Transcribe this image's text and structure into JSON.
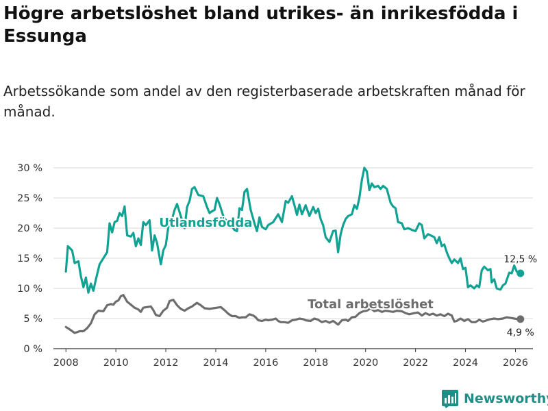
{
  "title": "Högre arbetslöshet bland utrikes- än inrikesfödda i Essunga",
  "subtitle": "Arbetssökande som andel av den registerbaserade arbetskraften månad för månad.",
  "brand": {
    "name": "Newsworthy",
    "icon": "newsworthy-logo-icon"
  },
  "colors": {
    "foreign_born": "#12a293",
    "total": "#6d6d6d",
    "grid": "#d9d9d9",
    "axis": "#333333"
  },
  "chart_data": {
    "type": "line",
    "title": "Högre arbetslöshet bland utrikes- än inrikesfödda i Essunga",
    "subtitle": "Arbetssökande som andel av den registerbaserade arbetskraften månad för månad.",
    "xlabel": "",
    "ylabel": "",
    "xlim": [
      2007.5,
      2026.7
    ],
    "ylim": [
      0,
      30
    ],
    "x_ticks": [
      2008,
      2010,
      2012,
      2014,
      2016,
      2018,
      2020,
      2022,
      2024,
      2026
    ],
    "y_ticks": [
      0,
      5,
      10,
      15,
      20,
      25,
      30
    ],
    "y_tick_labels": [
      "0 %",
      "5 %",
      "10 %",
      "15 %",
      "20 %",
      "25 %",
      "30 %"
    ],
    "grid": "horizontal",
    "series": [
      {
        "name": "Utlandsfödda",
        "color": "#12a293",
        "end_label": "12,5 %",
        "points": [
          [
            2008.0,
            12.8
          ],
          [
            2008.08,
            17.0
          ],
          [
            2008.25,
            16.3
          ],
          [
            2008.35,
            14.2
          ],
          [
            2008.5,
            14.5
          ],
          [
            2008.6,
            12.0
          ],
          [
            2008.7,
            10.2
          ],
          [
            2008.8,
            11.8
          ],
          [
            2008.9,
            9.3
          ],
          [
            2009.0,
            10.8
          ],
          [
            2009.1,
            9.6
          ],
          [
            2009.2,
            11.5
          ],
          [
            2009.35,
            14.0
          ],
          [
            2009.5,
            15.0
          ],
          [
            2009.65,
            16.0
          ],
          [
            2009.75,
            20.8
          ],
          [
            2009.85,
            19.3
          ],
          [
            2009.95,
            21.0
          ],
          [
            2010.05,
            21.2
          ],
          [
            2010.15,
            22.5
          ],
          [
            2010.25,
            22.0
          ],
          [
            2010.35,
            23.6
          ],
          [
            2010.45,
            18.8
          ],
          [
            2010.6,
            18.6
          ],
          [
            2010.7,
            19.2
          ],
          [
            2010.8,
            17.0
          ],
          [
            2010.9,
            18.3
          ],
          [
            2011.0,
            17.2
          ],
          [
            2011.1,
            21.0
          ],
          [
            2011.2,
            20.5
          ],
          [
            2011.35,
            21.3
          ],
          [
            2011.45,
            16.3
          ],
          [
            2011.55,
            18.8
          ],
          [
            2011.65,
            17.5
          ],
          [
            2011.8,
            14.0
          ],
          [
            2011.9,
            16.3
          ],
          [
            2012.0,
            17.2
          ],
          [
            2012.1,
            20.2
          ],
          [
            2012.25,
            21.5
          ],
          [
            2012.35,
            23.0
          ],
          [
            2012.45,
            24.0
          ],
          [
            2012.6,
            22.0
          ],
          [
            2012.75,
            20.0
          ],
          [
            2012.85,
            23.5
          ],
          [
            2012.95,
            24.5
          ],
          [
            2013.05,
            26.5
          ],
          [
            2013.15,
            26.8
          ],
          [
            2013.3,
            25.5
          ],
          [
            2013.5,
            25.3
          ],
          [
            2013.65,
            23.5
          ],
          [
            2013.75,
            22.5
          ],
          [
            2013.85,
            22.8
          ],
          [
            2013.95,
            23.0
          ],
          [
            2014.05,
            25.0
          ],
          [
            2014.15,
            24.0
          ],
          [
            2014.3,
            22.0
          ],
          [
            2014.45,
            21.0
          ],
          [
            2014.6,
            20.5
          ],
          [
            2014.75,
            19.7
          ],
          [
            2014.85,
            19.5
          ],
          [
            2014.95,
            23.3
          ],
          [
            2015.05,
            23.0
          ],
          [
            2015.15,
            26.0
          ],
          [
            2015.25,
            26.5
          ],
          [
            2015.4,
            23.0
          ],
          [
            2015.55,
            20.8
          ],
          [
            2015.65,
            19.5
          ],
          [
            2015.75,
            21.8
          ],
          [
            2015.85,
            20.2
          ],
          [
            2016.0,
            19.8
          ],
          [
            2016.1,
            20.5
          ],
          [
            2016.3,
            21.0
          ],
          [
            2016.5,
            22.3
          ],
          [
            2016.65,
            21.0
          ],
          [
            2016.8,
            24.5
          ],
          [
            2016.9,
            24.2
          ],
          [
            2017.05,
            25.3
          ],
          [
            2017.15,
            23.8
          ],
          [
            2017.25,
            22.2
          ],
          [
            2017.35,
            23.9
          ],
          [
            2017.45,
            22.3
          ],
          [
            2017.6,
            23.8
          ],
          [
            2017.75,
            22.0
          ],
          [
            2017.9,
            23.5
          ],
          [
            2018.0,
            22.5
          ],
          [
            2018.1,
            23.2
          ],
          [
            2018.2,
            21.5
          ],
          [
            2018.3,
            20.5
          ],
          [
            2018.4,
            18.5
          ],
          [
            2018.55,
            17.7
          ],
          [
            2018.7,
            19.5
          ],
          [
            2018.8,
            19.6
          ],
          [
            2018.9,
            16.0
          ],
          [
            2019.0,
            19.0
          ],
          [
            2019.1,
            20.5
          ],
          [
            2019.2,
            21.5
          ],
          [
            2019.3,
            22.0
          ],
          [
            2019.45,
            22.3
          ],
          [
            2019.55,
            23.8
          ],
          [
            2019.65,
            23.2
          ],
          [
            2019.75,
            25.0
          ],
          [
            2019.85,
            28.0
          ],
          [
            2019.95,
            30.0
          ],
          [
            2020.05,
            29.4
          ],
          [
            2020.15,
            26.3
          ],
          [
            2020.25,
            27.4
          ],
          [
            2020.35,
            26.8
          ],
          [
            2020.5,
            27.0
          ],
          [
            2020.6,
            26.5
          ],
          [
            2020.7,
            27.0
          ],
          [
            2020.85,
            26.5
          ],
          [
            2021.0,
            24.2
          ],
          [
            2021.1,
            23.6
          ],
          [
            2021.2,
            23.3
          ],
          [
            2021.3,
            21.0
          ],
          [
            2021.45,
            20.8
          ],
          [
            2021.55,
            19.8
          ],
          [
            2021.7,
            20.0
          ],
          [
            2021.85,
            19.7
          ],
          [
            2022.0,
            19.5
          ],
          [
            2022.15,
            20.8
          ],
          [
            2022.25,
            20.5
          ],
          [
            2022.35,
            18.3
          ],
          [
            2022.5,
            19.0
          ],
          [
            2022.6,
            18.8
          ],
          [
            2022.75,
            18.5
          ],
          [
            2022.85,
            17.5
          ],
          [
            2022.95,
            18.5
          ],
          [
            2023.05,
            17.0
          ],
          [
            2023.15,
            17.3
          ],
          [
            2023.25,
            16.0
          ],
          [
            2023.35,
            15.0
          ],
          [
            2023.45,
            14.2
          ],
          [
            2023.55,
            14.8
          ],
          [
            2023.7,
            14.2
          ],
          [
            2023.8,
            15.0
          ],
          [
            2023.9,
            13.2
          ],
          [
            2024.0,
            13.4
          ],
          [
            2024.1,
            10.2
          ],
          [
            2024.2,
            10.5
          ],
          [
            2024.35,
            10.0
          ],
          [
            2024.45,
            10.5
          ],
          [
            2024.55,
            10.2
          ],
          [
            2024.65,
            13.0
          ],
          [
            2024.75,
            13.6
          ],
          [
            2024.9,
            13.0
          ],
          [
            2025.0,
            13.2
          ],
          [
            2025.05,
            11.0
          ],
          [
            2025.15,
            11.5
          ],
          [
            2025.25,
            10.0
          ],
          [
            2025.4,
            9.8
          ],
          [
            2025.5,
            10.5
          ],
          [
            2025.6,
            10.8
          ],
          [
            2025.75,
            12.6
          ],
          [
            2025.85,
            12.5
          ],
          [
            2025.95,
            13.8
          ],
          [
            2026.05,
            12.8
          ],
          [
            2026.2,
            12.5
          ]
        ]
      },
      {
        "name": "Total arbetslöshet",
        "color": "#6d6d6d",
        "end_label": "4,9 %",
        "points": [
          [
            2008.0,
            3.6
          ],
          [
            2008.15,
            3.2
          ],
          [
            2008.35,
            2.6
          ],
          [
            2008.55,
            2.9
          ],
          [
            2008.7,
            2.9
          ],
          [
            2008.85,
            3.4
          ],
          [
            2009.0,
            4.2
          ],
          [
            2009.15,
            5.7
          ],
          [
            2009.3,
            6.3
          ],
          [
            2009.5,
            6.2
          ],
          [
            2009.65,
            7.2
          ],
          [
            2009.8,
            7.4
          ],
          [
            2009.9,
            7.3
          ],
          [
            2010.0,
            7.8
          ],
          [
            2010.1,
            8.0
          ],
          [
            2010.2,
            8.7
          ],
          [
            2010.3,
            8.9
          ],
          [
            2010.45,
            7.8
          ],
          [
            2010.6,
            7.3
          ],
          [
            2010.75,
            6.8
          ],
          [
            2010.9,
            6.5
          ],
          [
            2011.0,
            6.1
          ],
          [
            2011.1,
            6.8
          ],
          [
            2011.25,
            6.9
          ],
          [
            2011.4,
            7.0
          ],
          [
            2011.5,
            6.4
          ],
          [
            2011.6,
            5.6
          ],
          [
            2011.75,
            5.4
          ],
          [
            2011.9,
            6.3
          ],
          [
            2012.05,
            6.8
          ],
          [
            2012.15,
            7.9
          ],
          [
            2012.3,
            8.1
          ],
          [
            2012.45,
            7.2
          ],
          [
            2012.6,
            6.6
          ],
          [
            2012.75,
            6.3
          ],
          [
            2012.9,
            6.7
          ],
          [
            2013.05,
            7.0
          ],
          [
            2013.25,
            7.6
          ],
          [
            2013.4,
            7.2
          ],
          [
            2013.55,
            6.7
          ],
          [
            2013.75,
            6.6
          ],
          [
            2013.9,
            6.7
          ],
          [
            2014.05,
            6.8
          ],
          [
            2014.2,
            6.9
          ],
          [
            2014.35,
            6.4
          ],
          [
            2014.5,
            5.8
          ],
          [
            2014.65,
            5.4
          ],
          [
            2014.8,
            5.4
          ],
          [
            2014.95,
            5.1
          ],
          [
            2015.05,
            5.2
          ],
          [
            2015.2,
            5.2
          ],
          [
            2015.35,
            5.7
          ],
          [
            2015.5,
            5.5
          ],
          [
            2015.6,
            5.2
          ],
          [
            2015.7,
            4.7
          ],
          [
            2015.85,
            4.6
          ],
          [
            2016.0,
            4.8
          ],
          [
            2016.1,
            4.7
          ],
          [
            2016.25,
            4.8
          ],
          [
            2016.4,
            5.0
          ],
          [
            2016.5,
            4.6
          ],
          [
            2016.6,
            4.4
          ],
          [
            2016.75,
            4.4
          ],
          [
            2016.9,
            4.3
          ],
          [
            2017.05,
            4.7
          ],
          [
            2017.2,
            4.8
          ],
          [
            2017.35,
            5.0
          ],
          [
            2017.5,
            4.9
          ],
          [
            2017.6,
            4.7
          ],
          [
            2017.8,
            4.6
          ],
          [
            2017.95,
            5.0
          ],
          [
            2018.1,
            4.8
          ],
          [
            2018.25,
            4.4
          ],
          [
            2018.4,
            4.6
          ],
          [
            2018.55,
            4.3
          ],
          [
            2018.7,
            4.6
          ],
          [
            2018.8,
            4.3
          ],
          [
            2018.9,
            4.0
          ],
          [
            2019.05,
            4.7
          ],
          [
            2019.2,
            4.8
          ],
          [
            2019.3,
            4.6
          ],
          [
            2019.45,
            5.2
          ],
          [
            2019.6,
            5.3
          ],
          [
            2019.75,
            5.9
          ],
          [
            2019.9,
            6.2
          ],
          [
            2020.05,
            6.3
          ],
          [
            2020.2,
            6.7
          ],
          [
            2020.35,
            6.2
          ],
          [
            2020.5,
            6.4
          ],
          [
            2020.65,
            6.1
          ],
          [
            2020.8,
            6.3
          ],
          [
            2020.95,
            6.2
          ],
          [
            2021.1,
            6.1
          ],
          [
            2021.25,
            6.3
          ],
          [
            2021.45,
            6.2
          ],
          [
            2021.6,
            5.9
          ],
          [
            2021.75,
            5.7
          ],
          [
            2021.95,
            5.9
          ],
          [
            2022.1,
            6.0
          ],
          [
            2022.25,
            5.5
          ],
          [
            2022.4,
            5.9
          ],
          [
            2022.55,
            5.6
          ],
          [
            2022.7,
            5.8
          ],
          [
            2022.85,
            5.5
          ],
          [
            2023.0,
            5.7
          ],
          [
            2023.15,
            5.4
          ],
          [
            2023.3,
            5.8
          ],
          [
            2023.45,
            5.5
          ],
          [
            2023.55,
            4.5
          ],
          [
            2023.65,
            4.6
          ],
          [
            2023.8,
            5.0
          ],
          [
            2023.95,
            4.6
          ],
          [
            2024.1,
            4.9
          ],
          [
            2024.25,
            4.4
          ],
          [
            2024.4,
            4.4
          ],
          [
            2024.55,
            4.8
          ],
          [
            2024.7,
            4.5
          ],
          [
            2024.85,
            4.7
          ],
          [
            2025.0,
            4.9
          ],
          [
            2025.15,
            5.0
          ],
          [
            2025.3,
            4.9
          ],
          [
            2025.5,
            5.0
          ],
          [
            2025.65,
            5.2
          ],
          [
            2025.8,
            5.1
          ],
          [
            2025.95,
            5.0
          ],
          [
            2026.1,
            4.9
          ],
          [
            2026.2,
            4.9
          ]
        ]
      }
    ],
    "annotations": [
      {
        "text": "Utlandsfödda",
        "series": "Utlandsfödda",
        "x": 2013.6,
        "y": 20.2
      },
      {
        "text": "Total arbetslöshet",
        "series": "Total arbetslöshet",
        "x": 2020.2,
        "y": 6.7
      }
    ]
  }
}
